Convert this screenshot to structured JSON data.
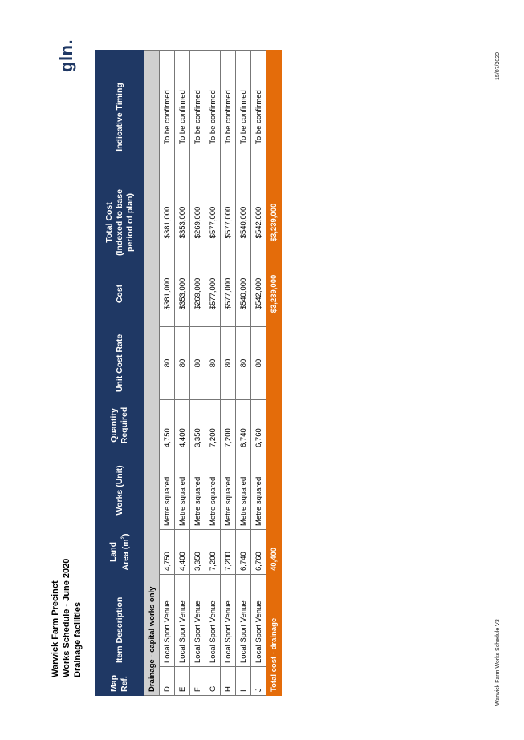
{
  "header": {
    "title": "Warwick Farm Precinct",
    "subtitle": "Works Schedule - June 2020",
    "section": "Drainage facilities"
  },
  "logo": "gln.",
  "footer": {
    "left": "Warwick Farm Works Schedule V3",
    "right": "15/07/2020"
  },
  "table": {
    "columns": {
      "map_ref": "Map Ref.",
      "description": "Item Description",
      "land_area": "Land Area (m",
      "land_area_sup": "2",
      "land_area_close": ")",
      "works_unit": "Works (Unit)",
      "quantity": "Quantity Required",
      "unit_cost_rate": "Unit Cost Rate",
      "cost": "Cost",
      "total_cost": "Total Cost (Indexed to base period of plan)",
      "timing": "Indicative Timing"
    },
    "section_label": "Drainage - capital works only",
    "rows": [
      {
        "ref": "D",
        "description": "Local Sport Venue",
        "land_area": "4,750",
        "unit": "Metre squared",
        "quantity": "4,750",
        "rate": "80",
        "cost": "$381,000",
        "total": "$381,000",
        "timing": "To be confirmed"
      },
      {
        "ref": "E",
        "description": "Local Sport Venue",
        "land_area": "4,400",
        "unit": "Metre squared",
        "quantity": "4,400",
        "rate": "80",
        "cost": "$353,000",
        "total": "$353,000",
        "timing": "To be confirmed"
      },
      {
        "ref": "F",
        "description": "Local Sport Venue",
        "land_area": "3,350",
        "unit": "Metre squared",
        "quantity": "3,350",
        "rate": "80",
        "cost": "$269,000",
        "total": "$269,000",
        "timing": "To be confirmed"
      },
      {
        "ref": "G",
        "description": "Local Sport Venue",
        "land_area": "7,200",
        "unit": "Metre squared",
        "quantity": "7,200",
        "rate": "80",
        "cost": "$577,000",
        "total": "$577,000",
        "timing": "To be confirmed"
      },
      {
        "ref": "H",
        "description": "Local Sport Venue",
        "land_area": "7,200",
        "unit": "Metre squared",
        "quantity": "7,200",
        "rate": "80",
        "cost": "$577,000",
        "total": "$577,000",
        "timing": "To be confirmed"
      },
      {
        "ref": "I",
        "description": "Local Sport Venue",
        "land_area": "6,740",
        "unit": "Metre squared",
        "quantity": "6,740",
        "rate": "80",
        "cost": "$540,000",
        "total": "$540,000",
        "timing": "To be confirmed"
      },
      {
        "ref": "J",
        "description": "Local Sport Venue",
        "land_area": "6,760",
        "unit": "Metre squared",
        "quantity": "6,760",
        "rate": "80",
        "cost": "$542,000",
        "total": "$542,000",
        "timing": "To be confirmed"
      }
    ],
    "total": {
      "label": "Total cost - drainage",
      "land_area": "40,400",
      "cost": "$3,239,000",
      "total": "$3,239,000"
    }
  }
}
